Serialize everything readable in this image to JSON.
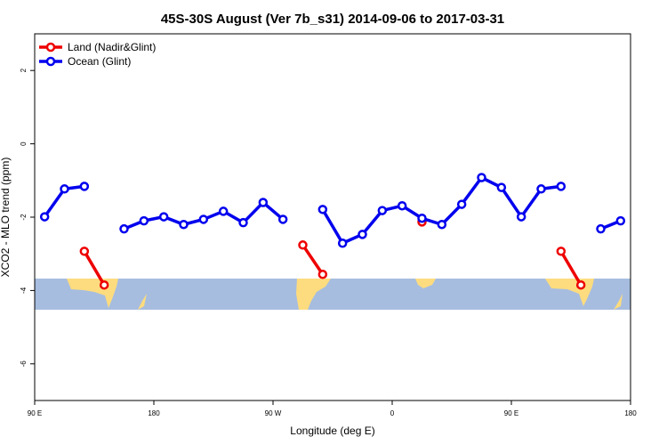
{
  "chart_data": {
    "type": "line",
    "title": "45S-30S August (Ver 7b_s31)   2014-09-06 to 2017-03-31",
    "xlabel": "Longitude (deg E)",
    "ylabel": "XCO2 - MLO trend (ppm)",
    "xlim": [
      90,
      540
    ],
    "ylim": [
      -7,
      3
    ],
    "xticks": [
      {
        "value": 90,
        "label": "90 E"
      },
      180,
      {
        "value": 270,
        "label": "90 W"
      },
      {
        "value": 360,
        "label": "0"
      },
      {
        "value": 450,
        "label": "90 E"
      },
      {
        "value": 540,
        "label": "180"
      }
    ],
    "yticks": [
      -6,
      -4,
      -2,
      0,
      2
    ],
    "legend": "top-left",
    "x": [
      97.5,
      112.5,
      127.5,
      142.5,
      157.5,
      172.5,
      187.5,
      202.5,
      217.5,
      232.5,
      247.5,
      262.5,
      277.5,
      292.5,
      307.5,
      322.5,
      337.5,
      352.5,
      367.5,
      382.5,
      397.5,
      412.5,
      427.5,
      442.5,
      457.5,
      472.5,
      487.5,
      502.5,
      517.5,
      532.5
    ],
    "series": [
      {
        "name": "Land (Nadir&Glint)",
        "color": "#ee0000",
        "values": [
          null,
          null,
          -2.93,
          -3.85,
          null,
          null,
          null,
          null,
          null,
          null,
          null,
          null,
          null,
          -2.76,
          -3.56,
          null,
          null,
          null,
          null,
          -2.13,
          null,
          null,
          null,
          null,
          null,
          null,
          -2.93,
          -3.85,
          null,
          null
        ]
      },
      {
        "name": "Ocean (Glint)",
        "color": "#0000ee",
        "values": [
          -1.99,
          -1.23,
          -1.16,
          null,
          -2.32,
          -2.1,
          -1.99,
          -2.2,
          -2.06,
          -1.84,
          -2.15,
          -1.6,
          -2.06,
          null,
          -1.79,
          -2.71,
          -2.47,
          -1.82,
          -1.69,
          -2.03,
          -2.2,
          -1.65,
          -0.92,
          -1.19,
          -1.99,
          -1.23,
          -1.16,
          null,
          -2.32,
          -2.1
        ]
      }
    ]
  }
}
